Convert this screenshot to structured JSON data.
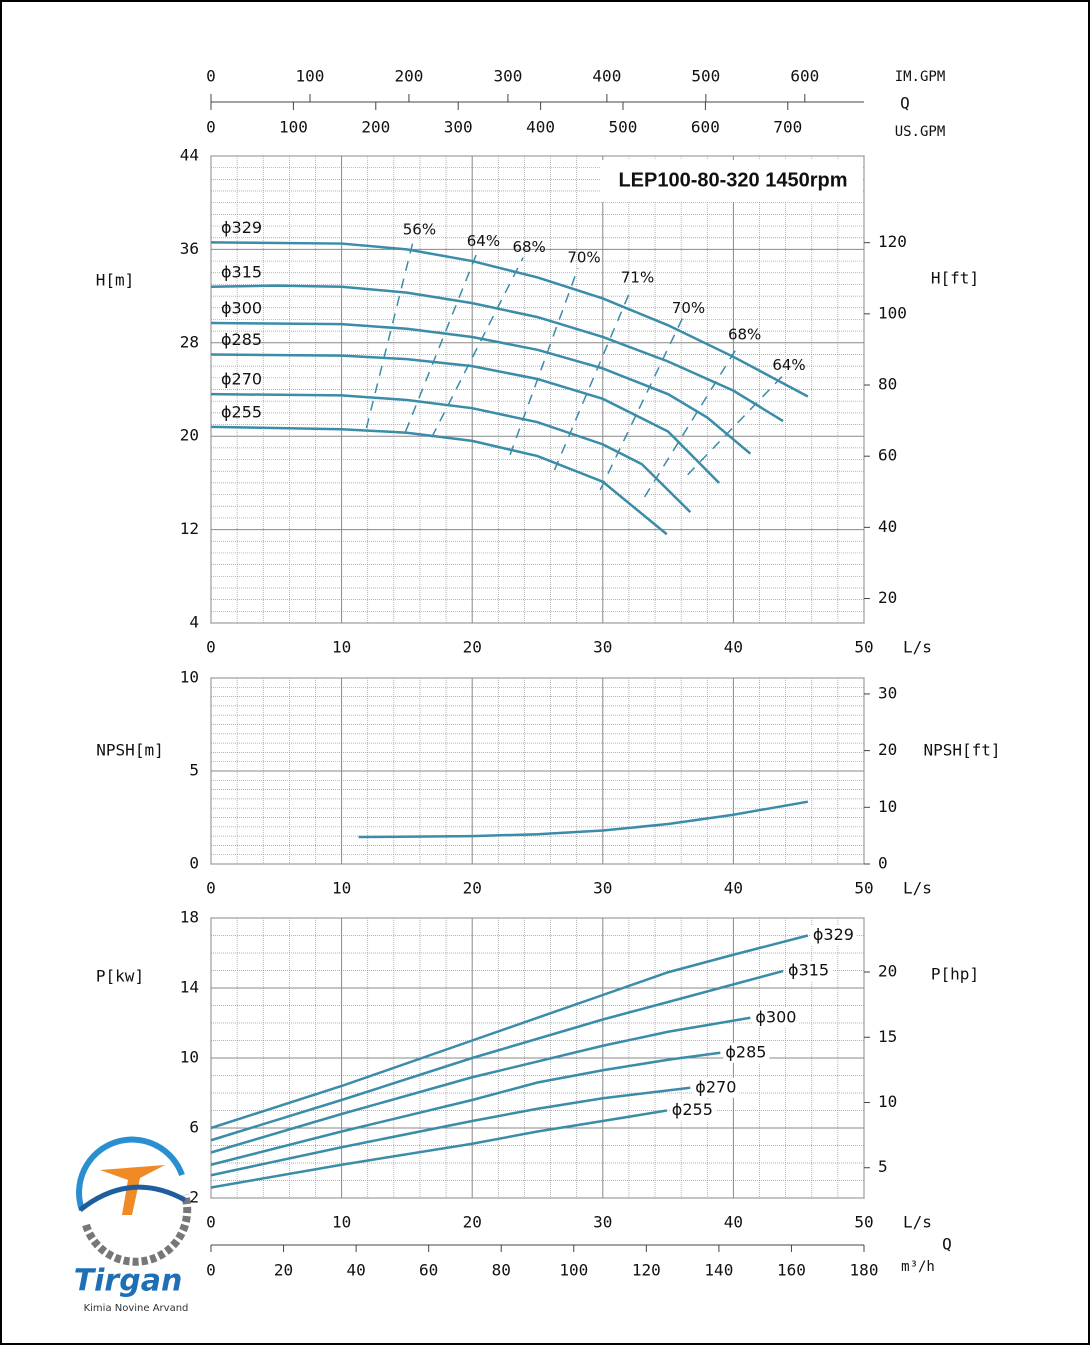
{
  "chart_data": [
    {
      "type": "line",
      "title": "LEP100-80-320 1450rpm",
      "x_label": "L/s",
      "y_label": "H[m]",
      "y2_label": "H[ft]",
      "xlim": [
        0,
        50
      ],
      "xticks": [
        0,
        10,
        20,
        30,
        40,
        50
      ],
      "ylim": [
        4,
        44
      ],
      "yticks": [
        4,
        12,
        20,
        28,
        36,
        44
      ],
      "y2lim": [
        13.12,
        144.36
      ],
      "y2ticks": [
        20,
        40,
        60,
        80,
        100,
        120
      ],
      "grid": true,
      "series_label_position": "start",
      "series": [
        {
          "name": "ϕ329",
          "color": "#3a8ca8",
          "x": [
            0,
            10,
            15,
            20,
            25,
            30,
            35,
            40,
            45.7
          ],
          "values": [
            36.6,
            36.5,
            36.0,
            35.0,
            33.6,
            31.8,
            29.5,
            26.8,
            23.4
          ]
        },
        {
          "name": "ϕ315",
          "color": "#3a8ca8",
          "x": [
            0,
            5,
            10,
            15,
            20,
            25,
            30,
            35,
            40,
            43.8
          ],
          "values": [
            32.8,
            32.9,
            32.8,
            32.3,
            31.4,
            30.2,
            28.5,
            26.4,
            23.9,
            21.3
          ]
        },
        {
          "name": "ϕ300",
          "color": "#3a8ca8",
          "x": [
            0,
            10,
            15,
            20,
            25,
            30,
            35,
            38,
            41.3
          ],
          "values": [
            29.7,
            29.6,
            29.2,
            28.5,
            27.4,
            25.8,
            23.6,
            21.6,
            18.5
          ]
        },
        {
          "name": "ϕ285",
          "color": "#3a8ca8",
          "x": [
            0,
            10,
            15,
            20,
            25,
            30,
            35,
            38.9
          ],
          "values": [
            27.0,
            26.9,
            26.6,
            26.0,
            24.9,
            23.2,
            20.4,
            16.0
          ]
        },
        {
          "name": "ϕ270",
          "color": "#3a8ca8",
          "x": [
            0,
            10,
            15,
            20,
            25,
            30,
            33,
            36.7
          ],
          "values": [
            23.6,
            23.5,
            23.1,
            22.4,
            21.2,
            19.3,
            17.6,
            13.5
          ]
        },
        {
          "name": "ϕ255",
          "color": "#3a8ca8",
          "x": [
            0,
            10,
            15,
            20,
            25,
            30,
            34.9
          ],
          "values": [
            20.8,
            20.6,
            20.3,
            19.6,
            18.3,
            16.1,
            11.6
          ]
        }
      ],
      "efficiency_lines": [
        {
          "label": "56%",
          "x": [
            11.9,
            15.5
          ],
          "values": [
            20.7,
            36.8
          ]
        },
        {
          "label": "64%",
          "x": [
            14.9,
            20.4
          ],
          "values": [
            20.4,
            35.8
          ]
        },
        {
          "label": "68%",
          "x": [
            16.9,
            23.9
          ],
          "values": [
            19.9,
            35.3
          ]
        },
        {
          "label": "70%",
          "x": [
            22.9,
            28.1
          ],
          "values": [
            18.4,
            34.4
          ]
        },
        {
          "label": "71%",
          "x": [
            26.3,
            32.2
          ],
          "values": [
            17.1,
            32.7
          ]
        },
        {
          "label": "70%",
          "x": [
            29.8,
            36.1
          ],
          "values": [
            15.4,
            30.1
          ]
        },
        {
          "label": "68%",
          "x": [
            33.2,
            40.4
          ],
          "values": [
            14.8,
            27.8
          ]
        },
        {
          "label": "64%",
          "x": [
            36.5,
            43.8
          ],
          "values": [
            16.7,
            25.2
          ]
        }
      ],
      "top_axis_label": "Q",
      "top_axes": [
        {
          "label": "IM.GPM",
          "xlim": [
            0,
            659.8
          ],
          "xticks": [
            0,
            100,
            200,
            300,
            400,
            500,
            600
          ]
        },
        {
          "label": "US.GPM",
          "xlim": [
            0,
            792.5
          ],
          "xticks": [
            0,
            100,
            200,
            300,
            400,
            500,
            600,
            700
          ]
        }
      ]
    },
    {
      "type": "line",
      "x_label": "L/s",
      "y_label": "NPSH[m]",
      "y2_label": "NPSH[ft]",
      "xlim": [
        0,
        50
      ],
      "xticks": [
        0,
        10,
        20,
        30,
        40,
        50
      ],
      "ylim": [
        0,
        10
      ],
      "yticks": [
        0,
        5,
        10
      ],
      "y2lim": [
        0,
        32.81
      ],
      "y2ticks": [
        0,
        10,
        20,
        30
      ],
      "grid": true,
      "series": [
        {
          "color": "#3a8ca8",
          "x": [
            11.3,
            20,
            25,
            30,
            35,
            40,
            45.7
          ],
          "values": [
            1.45,
            1.5,
            1.6,
            1.8,
            2.15,
            2.65,
            3.35
          ]
        }
      ]
    },
    {
      "type": "line",
      "x_label": "L/s",
      "y_label": "P[kw]",
      "y2_label": "P[hp]",
      "xlim": [
        0,
        50
      ],
      "xticks": [
        0,
        10,
        20,
        30,
        40,
        50
      ],
      "ylim": [
        2,
        18
      ],
      "yticks": [
        2,
        6,
        10,
        14,
        18
      ],
      "y2lim": [
        2.68,
        24.14
      ],
      "y2ticks": [
        5,
        10,
        15,
        20
      ],
      "grid": true,
      "series_label_position": "end",
      "series": [
        {
          "name": "ϕ329",
          "color": "#3a8ca8",
          "x": [
            0,
            10,
            20,
            30,
            35,
            40,
            45.7
          ],
          "values": [
            6.0,
            8.4,
            11.0,
            13.6,
            14.9,
            15.9,
            17.0
          ]
        },
        {
          "name": "ϕ315",
          "color": "#3a8ca8",
          "x": [
            0,
            10,
            20,
            30,
            35,
            43.8
          ],
          "values": [
            5.3,
            7.6,
            10.0,
            12.2,
            13.2,
            14.97
          ]
        },
        {
          "name": "ϕ300",
          "color": "#3a8ca8",
          "x": [
            0,
            10,
            20,
            30,
            35,
            41.3
          ],
          "values": [
            4.6,
            6.8,
            8.9,
            10.7,
            11.5,
            12.3
          ]
        },
        {
          "name": "ϕ285",
          "color": "#3a8ca8",
          "x": [
            0,
            10,
            20,
            25,
            30,
            35,
            39
          ],
          "values": [
            3.9,
            5.8,
            7.6,
            8.6,
            9.3,
            9.9,
            10.3
          ]
        },
        {
          "name": "ϕ270",
          "color": "#3a8ca8",
          "x": [
            0,
            10,
            20,
            25,
            30,
            36.7
          ],
          "values": [
            3.3,
            4.9,
            6.4,
            7.1,
            7.7,
            8.3
          ]
        },
        {
          "name": "ϕ255",
          "color": "#3a8ca8",
          "x": [
            0,
            10,
            20,
            25,
            30,
            34.9
          ],
          "values": [
            2.6,
            3.9,
            5.1,
            5.8,
            6.4,
            7.0
          ]
        }
      ],
      "bottom_axis": {
        "name": "Q",
        "label": "m³/h",
        "xlim": [
          0,
          180
        ],
        "xticks": [
          0,
          20,
          40,
          60,
          80,
          100,
          120,
          140,
          160,
          180
        ]
      }
    }
  ],
  "logo": {
    "name": "Tirgan",
    "subtitle": "Kimia Novine Arvand"
  }
}
